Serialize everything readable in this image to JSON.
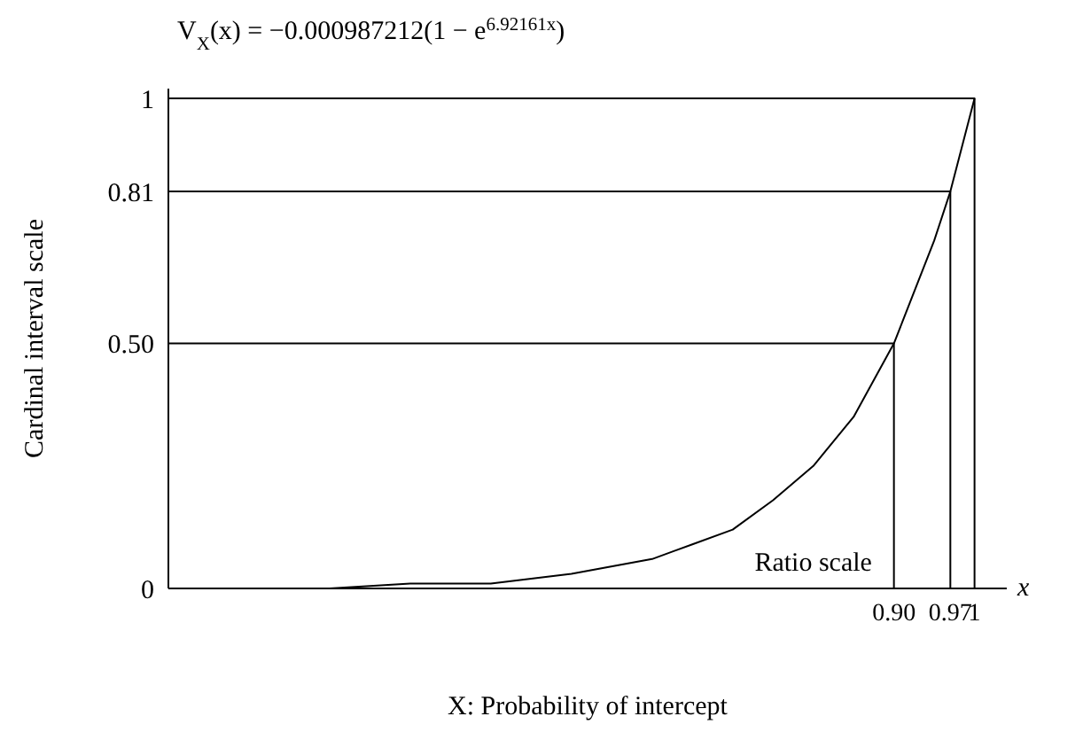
{
  "chart_data": {
    "type": "line",
    "title": "V$_{X}$(x) = −0.000987212(1 − e$^{6.92161x}$)",
    "xlabel": "X: Probability of intercept",
    "ylabel": "Cardinal interval scale",
    "series": [
      {
        "color": "#000000",
        "x": [
          0,
          0.1,
          0.2,
          0.3,
          0.4,
          0.5,
          0.6,
          0.65,
          0.7,
          0.75,
          0.8,
          0.85,
          0.9,
          0.95,
          0.97,
          1
        ],
        "values": [
          0,
          0,
          0,
          0.01,
          0.01,
          0.03,
          0.06,
          0.09,
          0.12,
          0.18,
          0.25,
          0.35,
          0.5,
          0.71,
          0.81,
          1
        ]
      },
      {
        "color": "#000000",
        "x": [
          0,
          0.9,
          0.9
        ],
        "values": [
          0.5,
          0.5,
          0
        ]
      },
      {
        "color": "#000000",
        "x": [
          0,
          0.97,
          0.97
        ],
        "values": [
          0.81,
          0.81,
          0
        ]
      },
      {
        "color": "#000000",
        "x": [
          0,
          1,
          1
        ],
        "values": [
          1,
          1,
          0
        ]
      }
    ],
    "xlim": [
      0,
      1.04
    ],
    "xticks": [
      {
        "value": 0.9,
        "label": "0.90"
      },
      {
        "value": 0.97,
        "label": "0.97"
      },
      1
    ],
    "ylim": [
      0,
      1.02
    ],
    "yticks": [
      0,
      {
        "value": 0.5,
        "label": "0.50"
      },
      {
        "value": 0.81,
        "label": "0.81"
      },
      1
    ],
    "annotations": [
      "Ratio scale",
      "x"
    ],
    "grid": false,
    "legend": false,
    "marker": "none",
    "line_style": "solid"
  }
}
